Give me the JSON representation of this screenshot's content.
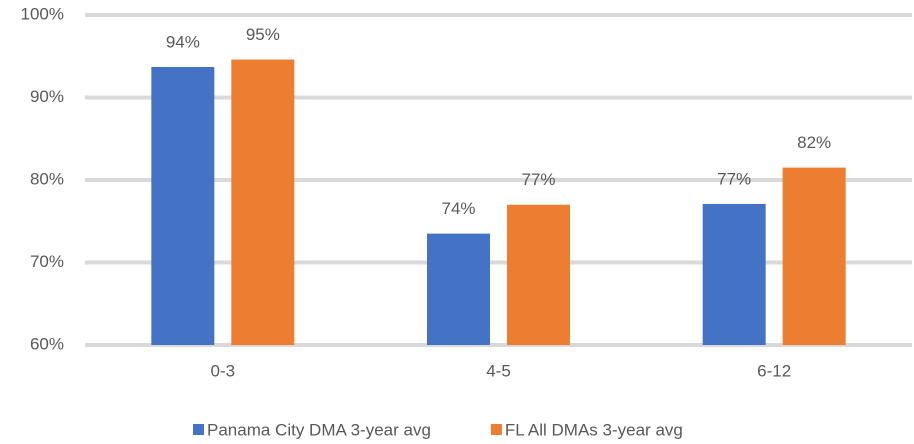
{
  "chart_data": {
    "type": "bar",
    "categories": [
      "0-3",
      "4-5",
      "6-12"
    ],
    "series": [
      {
        "name": "Panama City DMA 3-year avg",
        "color": "#4472c4",
        "values": [
          93.7,
          73.5,
          77.1
        ],
        "value_labels": [
          "94%",
          "74%",
          "77%"
        ]
      },
      {
        "name": "FL All DMAs 3-year avg",
        "color": "#ed7d31",
        "values": [
          94.6,
          77.0,
          81.5
        ],
        "value_labels": [
          "95%",
          "77%",
          "82%"
        ]
      }
    ],
    "ylim": [
      60,
      100
    ],
    "yticks": [
      {
        "value": 60,
        "label": "60%"
      },
      {
        "value": 70,
        "label": "70%"
      },
      {
        "value": 80,
        "label": "80%"
      },
      {
        "value": 90,
        "label": "90%"
      },
      {
        "value": 100,
        "label": "100%"
      }
    ],
    "grid": true,
    "legend": "bottom"
  }
}
